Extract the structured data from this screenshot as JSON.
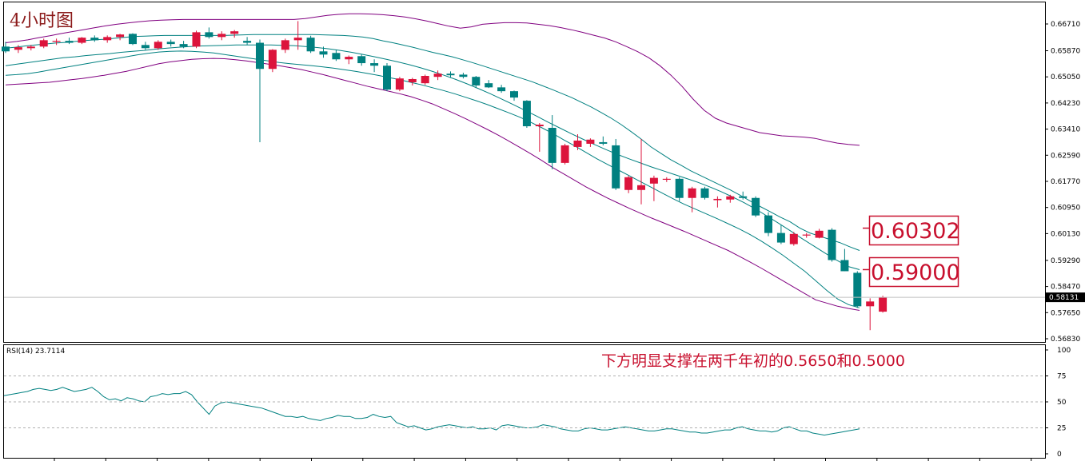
{
  "chart_data": [
    {
      "type": "candlestick",
      "title": "4小时图",
      "ylim": [
        0.5668,
        0.6701
      ],
      "y_ticks": [
        "0.66710",
        "0.65870",
        "0.65050",
        "0.64230",
        "0.63410",
        "0.62590",
        "0.61770",
        "0.60950",
        "0.60130",
        "0.59290",
        "0.58470",
        "0.57650",
        "0.56830"
      ],
      "current_price_label": "0.58131",
      "current_price": 0.58131,
      "colors": {
        "bull": "#dc143c",
        "bear": "#008080",
        "band_outer": "#800080",
        "band_inner": "#008080",
        "annotation": "#c8102e"
      },
      "candles": [
        [
          0.66,
          0.6615,
          0.658,
          0.6585
        ],
        [
          0.659,
          0.6605,
          0.658,
          0.6598
        ],
        [
          0.6595,
          0.6605,
          0.6588,
          0.66
        ],
        [
          0.66,
          0.6625,
          0.6595,
          0.662
        ],
        [
          0.6615,
          0.6625,
          0.6605,
          0.6618
        ],
        [
          0.6618,
          0.6628,
          0.6608,
          0.6612
        ],
        [
          0.6612,
          0.663,
          0.6608,
          0.6628
        ],
        [
          0.6628,
          0.6635,
          0.6615,
          0.662
        ],
        [
          0.662,
          0.6635,
          0.6612,
          0.663
        ],
        [
          0.663,
          0.664,
          0.662,
          0.6638
        ],
        [
          0.664,
          0.6642,
          0.6605,
          0.6608
        ],
        [
          0.6605,
          0.6615,
          0.659,
          0.6595
        ],
        [
          0.6595,
          0.662,
          0.659,
          0.6615
        ],
        [
          0.6615,
          0.6622,
          0.66,
          0.6608
        ],
        [
          0.6608,
          0.6618,
          0.6595,
          0.66
        ],
        [
          0.66,
          0.665,
          0.6595,
          0.6645
        ],
        [
          0.6645,
          0.666,
          0.6625,
          0.663
        ],
        [
          0.663,
          0.6648,
          0.662,
          0.664
        ],
        [
          0.664,
          0.6652,
          0.6628,
          0.6648
        ],
        [
          0.6618,
          0.663,
          0.6605,
          0.6612
        ],
        [
          0.6612,
          0.6622,
          0.63,
          0.653
        ],
        [
          0.653,
          0.6592,
          0.652,
          0.659
        ],
        [
          0.659,
          0.6625,
          0.658,
          0.662
        ],
        [
          0.662,
          0.668,
          0.659,
          0.6628
        ],
        [
          0.6628,
          0.6634,
          0.658,
          0.6585
        ],
        [
          0.6585,
          0.66,
          0.6565,
          0.6575
        ],
        [
          0.658,
          0.659,
          0.6555,
          0.656
        ],
        [
          0.656,
          0.6572,
          0.6545,
          0.6568
        ],
        [
          0.657,
          0.6575,
          0.654,
          0.6548
        ],
        [
          0.6548,
          0.656,
          0.652,
          0.654
        ],
        [
          0.654,
          0.6548,
          0.646,
          0.6465
        ],
        [
          0.6465,
          0.6505,
          0.646,
          0.65
        ],
        [
          0.6488,
          0.6502,
          0.6478,
          0.6498
        ],
        [
          0.6485,
          0.6512,
          0.648,
          0.6508
        ],
        [
          0.6505,
          0.6525,
          0.6495,
          0.6515
        ],
        [
          0.6515,
          0.6522,
          0.6502,
          0.651
        ],
        [
          0.6512,
          0.6518,
          0.65,
          0.6505
        ],
        [
          0.6505,
          0.6508,
          0.647,
          0.6478
        ],
        [
          0.6485,
          0.6495,
          0.647,
          0.6472
        ],
        [
          0.6472,
          0.648,
          0.6455,
          0.646
        ],
        [
          0.646,
          0.6462,
          0.643,
          0.644
        ],
        [
          0.643,
          0.6432,
          0.6345,
          0.635
        ],
        [
          0.635,
          0.636,
          0.627,
          0.6355
        ],
        [
          0.6345,
          0.6385,
          0.6215,
          0.6235
        ],
        [
          0.6235,
          0.6295,
          0.623,
          0.629
        ],
        [
          0.6285,
          0.6325,
          0.6275,
          0.6305
        ],
        [
          0.6295,
          0.6312,
          0.6285,
          0.6308
        ],
        [
          0.63,
          0.6318,
          0.629,
          0.6295
        ],
        [
          0.629,
          0.631,
          0.615,
          0.6155
        ],
        [
          0.615,
          0.6195,
          0.614,
          0.619
        ],
        [
          0.615,
          0.631,
          0.6105,
          0.6165
        ],
        [
          0.617,
          0.6195,
          0.6115,
          0.6188
        ],
        [
          0.6182,
          0.619,
          0.6175,
          0.6185
        ],
        [
          0.6185,
          0.619,
          0.6115,
          0.6125
        ],
        [
          0.6125,
          0.616,
          0.608,
          0.6155
        ],
        [
          0.6155,
          0.616,
          0.612,
          0.6125
        ],
        [
          0.6118,
          0.613,
          0.6095,
          0.6122
        ],
        [
          0.612,
          0.6135,
          0.611,
          0.613
        ],
        [
          0.613,
          0.6145,
          0.612,
          0.6125
        ],
        [
          0.6125,
          0.613,
          0.6065,
          0.607
        ],
        [
          0.607,
          0.608,
          0.6005,
          0.6015
        ],
        [
          0.6015,
          0.604,
          0.598,
          0.5985
        ],
        [
          0.598,
          0.6018,
          0.5975,
          0.6012
        ],
        [
          0.6008,
          0.6015,
          0.6,
          0.601
        ],
        [
          0.6,
          0.6028,
          0.5998,
          0.6022
        ],
        [
          0.6025,
          0.603,
          0.5925,
          0.593
        ],
        [
          0.593,
          0.5965,
          0.5895,
          0.5895
        ],
        [
          0.589,
          0.5895,
          0.578,
          0.5785
        ],
        [
          0.5785,
          0.581,
          0.571,
          0.58
        ],
        [
          0.5768,
          0.5818,
          0.5765,
          0.5813
        ]
      ],
      "bands": {
        "outer_upper": [
          0.6612,
          0.6616,
          0.6621,
          0.6628,
          0.6634,
          0.6641,
          0.6647,
          0.6653,
          0.6659,
          0.6665,
          0.667,
          0.6674,
          0.6678,
          0.6681,
          0.6683,
          0.6684,
          0.6685,
          0.6685,
          0.6685,
          0.6685,
          0.6685,
          0.6685,
          0.6685,
          0.6685,
          0.6685,
          0.6685,
          0.6685,
          0.6688,
          0.6693,
          0.6698,
          0.6701,
          0.6703,
          0.6703,
          0.6702,
          0.67,
          0.6697,
          0.6693,
          0.6687,
          0.668,
          0.6672,
          0.6664,
          0.6658,
          0.6662,
          0.667,
          0.6673,
          0.6675,
          0.6675,
          0.6674,
          0.667,
          0.6666,
          0.666,
          0.6653,
          0.6645,
          0.6636,
          0.6627,
          0.6615,
          0.66,
          0.6584,
          0.6565,
          0.654,
          0.651,
          0.6475,
          0.6435,
          0.64,
          0.6375,
          0.636,
          0.635,
          0.634,
          0.633,
          0.6325,
          0.632,
          0.6318,
          0.6316,
          0.6312,
          0.6304,
          0.6297,
          0.6293,
          0.629
        ],
        "inner_upper": [
          0.6595,
          0.6598,
          0.6602,
          0.6605,
          0.6608,
          0.6611,
          0.6613,
          0.6616,
          0.6619,
          0.6621,
          0.6623,
          0.6626,
          0.6629,
          0.6632,
          0.6633,
          0.6634,
          0.6635,
          0.6635,
          0.6635,
          0.6635,
          0.6635,
          0.6635,
          0.6635,
          0.6636,
          0.6637,
          0.6638,
          0.6638,
          0.6638,
          0.6638,
          0.6638,
          0.6638,
          0.6638,
          0.6637,
          0.6636,
          0.6635,
          0.6633,
          0.663,
          0.6625,
          0.6618,
          0.6612,
          0.6605,
          0.6598,
          0.659,
          0.6582,
          0.6575,
          0.6568,
          0.6559,
          0.655,
          0.654,
          0.653,
          0.652,
          0.651,
          0.65,
          0.649,
          0.6478,
          0.6466,
          0.6453,
          0.644,
          0.6425,
          0.641,
          0.6393,
          0.6375,
          0.6355,
          0.6333,
          0.631,
          0.6285,
          0.6265,
          0.6245,
          0.6228,
          0.621,
          0.6195,
          0.618,
          0.6165,
          0.615,
          0.6133,
          0.6115,
          0.6098,
          0.6082,
          0.6065,
          0.605,
          0.603,
          0.6015,
          0.6005,
          0.5995,
          0.5985,
          0.5972,
          0.596
        ],
        "middle": [
          0.654,
          0.6545,
          0.655,
          0.6555,
          0.656,
          0.6565,
          0.6568,
          0.6572,
          0.6575,
          0.6578,
          0.6582,
          0.6585,
          0.6588,
          0.6592,
          0.6595,
          0.6598,
          0.66,
          0.6602,
          0.6603,
          0.6604,
          0.6605,
          0.6605,
          0.6605,
          0.6605,
          0.6604,
          0.6603,
          0.66,
          0.6597,
          0.6593,
          0.6588,
          0.6582,
          0.6575,
          0.6568,
          0.656,
          0.6552,
          0.6543,
          0.6533,
          0.6522,
          0.651,
          0.6497,
          0.6483,
          0.6468,
          0.6452,
          0.6435,
          0.6418,
          0.64,
          0.6382,
          0.6363,
          0.6345,
          0.6327,
          0.631,
          0.6293,
          0.6277,
          0.6262,
          0.6248,
          0.6235,
          0.6222,
          0.621,
          0.6198,
          0.6186,
          0.6174,
          0.616,
          0.6145,
          0.6128,
          0.611,
          0.609,
          0.6068,
          0.6045,
          0.6022,
          0.5998,
          0.5975,
          0.5952,
          0.593,
          0.591,
          0.59
        ],
        "inner_lower": [
          0.651,
          0.6512,
          0.6515,
          0.652,
          0.6526,
          0.6532,
          0.6538,
          0.6544,
          0.655,
          0.6556,
          0.6562,
          0.6568,
          0.6574,
          0.6579,
          0.6583,
          0.6585,
          0.6586,
          0.6585,
          0.6583,
          0.658,
          0.6575,
          0.657,
          0.6565,
          0.656,
          0.6555,
          0.655,
          0.6546,
          0.6543,
          0.654,
          0.6536,
          0.6532,
          0.6527,
          0.6522,
          0.6516,
          0.651,
          0.6503,
          0.6496,
          0.6488,
          0.648,
          0.6471,
          0.6462,
          0.6452,
          0.6441,
          0.643,
          0.6418,
          0.6405,
          0.6392,
          0.6378,
          0.6362,
          0.6345,
          0.6327,
          0.6307,
          0.6288,
          0.6268,
          0.6248,
          0.623,
          0.6212,
          0.6194,
          0.6176,
          0.6158,
          0.614,
          0.6122,
          0.6105,
          0.609,
          0.6075,
          0.606,
          0.6044,
          0.6028,
          0.601,
          0.599,
          0.5968,
          0.5945,
          0.592,
          0.5895,
          0.5865,
          0.5835,
          0.5808,
          0.579,
          0.578
        ],
        "outer_lower": [
          0.648,
          0.6482,
          0.6484,
          0.6486,
          0.6488,
          0.6492,
          0.6496,
          0.65,
          0.6505,
          0.651,
          0.6516,
          0.6522,
          0.653,
          0.6538,
          0.6546,
          0.6552,
          0.6556,
          0.656,
          0.6562,
          0.6563,
          0.6562,
          0.6559,
          0.6555,
          0.655,
          0.6545,
          0.654,
          0.6534,
          0.6528,
          0.652,
          0.6512,
          0.6503,
          0.6494,
          0.6485,
          0.6476,
          0.6468,
          0.646,
          0.6452,
          0.6443,
          0.6432,
          0.642,
          0.6405,
          0.639,
          0.6374,
          0.6357,
          0.634,
          0.6322,
          0.6303,
          0.6283,
          0.6263,
          0.6242,
          0.622,
          0.62,
          0.618,
          0.616,
          0.6142,
          0.6124,
          0.6108,
          0.6092,
          0.6077,
          0.6062,
          0.6048,
          0.6034,
          0.602,
          0.6005,
          0.599,
          0.5975,
          0.596,
          0.5942,
          0.5924,
          0.5905,
          0.5885,
          0.5865,
          0.5845,
          0.5825,
          0.5805,
          0.5795,
          0.5785,
          0.5778,
          0.5772
        ]
      }
    },
    {
      "type": "line",
      "label": "RSI(14) 23.7114",
      "ylim": [
        0,
        100
      ],
      "y_ticks": [
        "100",
        "75",
        "50",
        "25",
        "0"
      ],
      "levels": [
        75,
        50,
        25
      ],
      "values": [
        56,
        57,
        58,
        59,
        60,
        62,
        63,
        62,
        61,
        62,
        64,
        62,
        60,
        61,
        62,
        64,
        60,
        55,
        52,
        53,
        51,
        54,
        53,
        51,
        50,
        55,
        56,
        58,
        57,
        58,
        58,
        60,
        57,
        50,
        44,
        38,
        46,
        49,
        50,
        49,
        48,
        47,
        46,
        45,
        44,
        42,
        40,
        38,
        36,
        36,
        35,
        36,
        34,
        33,
        32,
        34,
        35,
        37,
        36,
        36,
        34,
        34,
        35,
        38,
        36,
        35,
        36,
        30,
        28,
        26,
        27,
        25,
        23,
        24,
        26,
        27,
        28,
        27,
        26,
        25,
        26,
        24,
        24,
        25,
        23,
        27,
        28,
        27,
        26,
        25,
        25,
        26,
        28,
        27,
        26,
        24,
        23,
        22,
        22,
        24,
        25,
        24,
        23,
        23,
        24,
        25,
        26,
        25,
        24,
        23,
        22,
        22,
        23,
        24,
        24,
        23,
        22,
        21,
        21,
        20,
        20,
        21,
        22,
        23,
        23,
        25,
        26,
        24,
        23,
        22,
        22,
        21,
        22,
        25,
        26,
        24,
        22,
        22,
        20,
        19,
        18,
        19,
        20,
        21,
        22,
        23,
        24
      ],
      "color": "#008080"
    }
  ],
  "annotations": {
    "title": "4小时图",
    "box1": "0.60302",
    "box2": "0.59000",
    "note": "下方明显支撑在两千年初的0.5650和0.5000",
    "box1_price": 0.60302,
    "box2_price": 0.59
  }
}
